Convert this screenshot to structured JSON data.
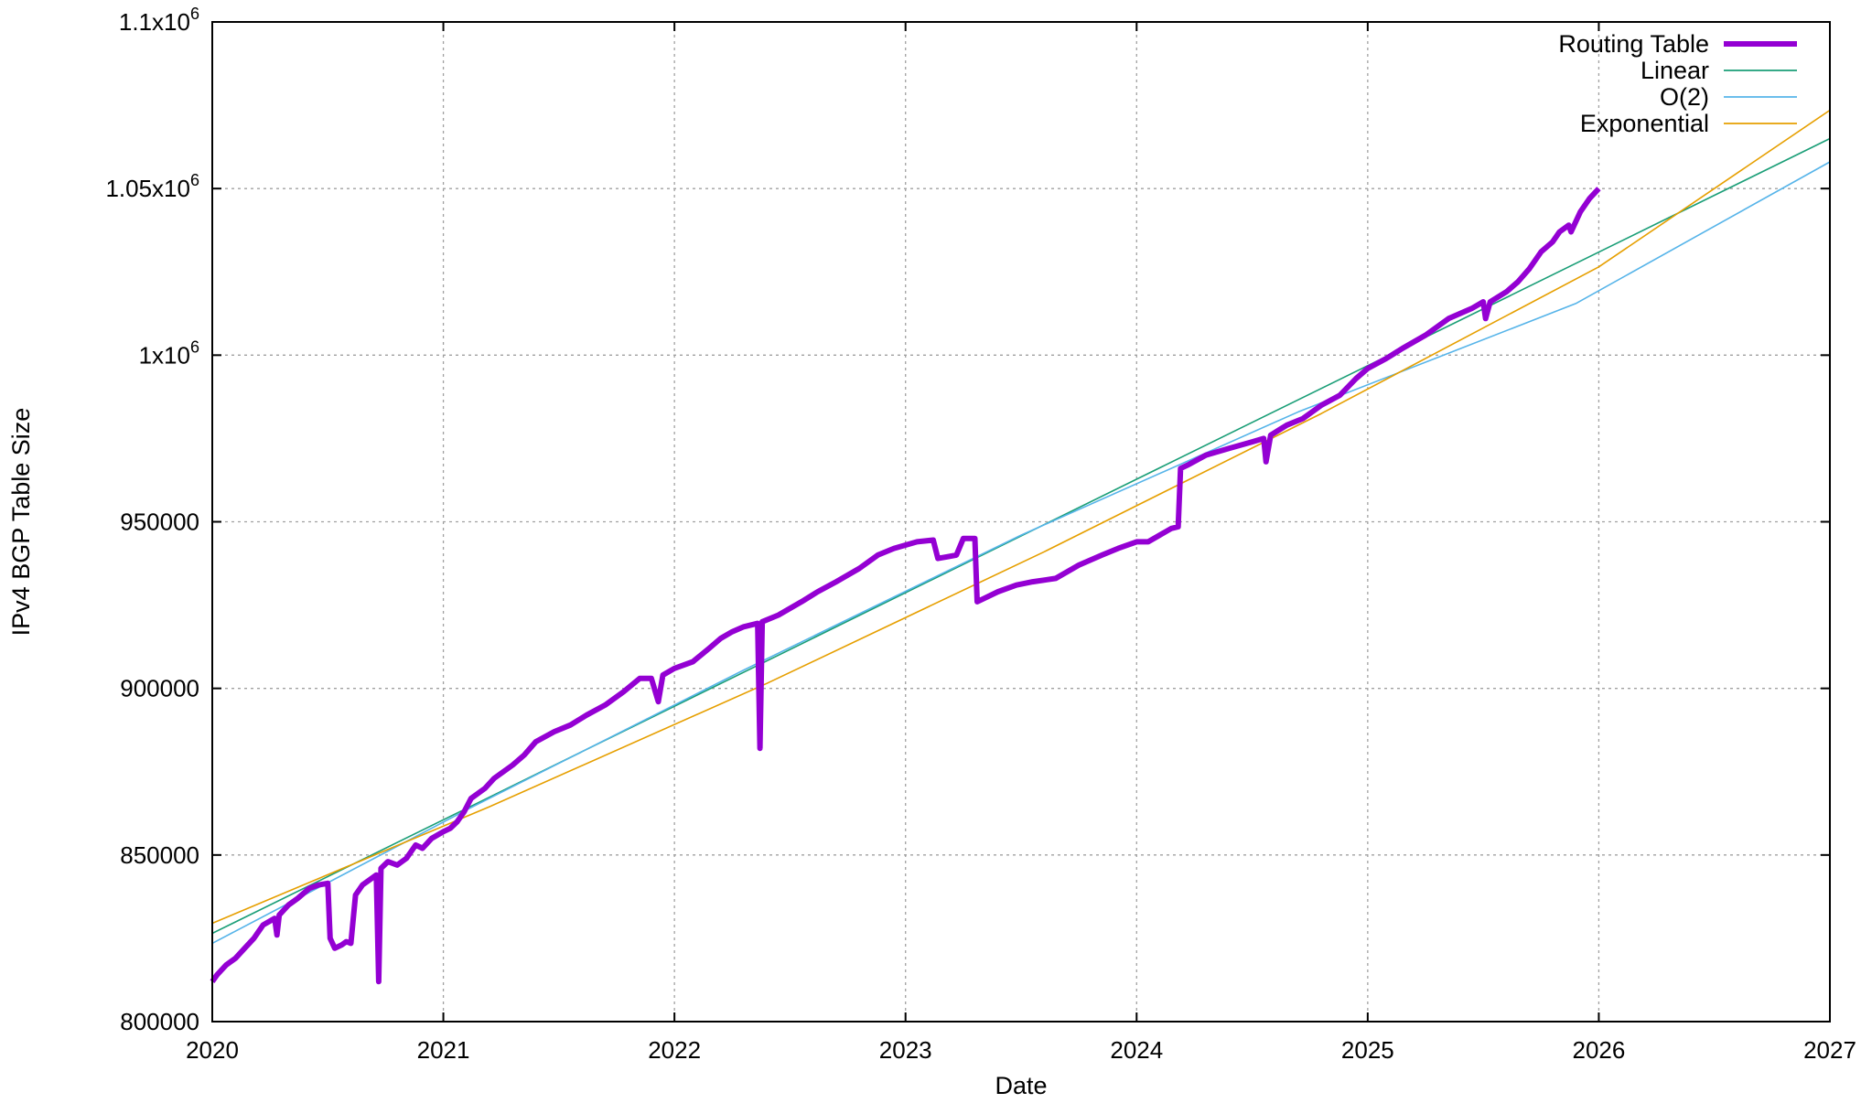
{
  "chart_data": {
    "type": "line",
    "title": "",
    "xlabel": "Date",
    "ylabel": "IPv4 BGP Table Size",
    "xlim": [
      2020,
      2027
    ],
    "ylim": [
      800000,
      1100000
    ],
    "grid": true,
    "legend_position": "top-right",
    "x_ticks": [
      {
        "value": 2020,
        "label": "2020"
      },
      {
        "value": 2021,
        "label": "2021"
      },
      {
        "value": 2022,
        "label": "2022"
      },
      {
        "value": 2023,
        "label": "2023"
      },
      {
        "value": 2024,
        "label": "2024"
      },
      {
        "value": 2025,
        "label": "2025"
      },
      {
        "value": 2026,
        "label": "2026"
      },
      {
        "value": 2027,
        "label": "2027"
      }
    ],
    "y_ticks": [
      {
        "value": 800000,
        "label": "800000"
      },
      {
        "value": 850000,
        "label": "850000"
      },
      {
        "value": 900000,
        "label": "900000"
      },
      {
        "value": 950000,
        "label": "950000"
      },
      {
        "value": 1000000,
        "label": "1x10",
        "sup": "6"
      },
      {
        "value": 1050000,
        "label": "1.05x10",
        "sup": "6"
      },
      {
        "value": 1100000,
        "label": "1.1x10",
        "sup": "6"
      }
    ],
    "series": [
      {
        "name": "Routing Table",
        "color": "#9400d3",
        "kind": "data",
        "points": [
          [
            2020.0,
            812000
          ],
          [
            2020.02,
            814000
          ],
          [
            2020.06,
            817000
          ],
          [
            2020.1,
            819000
          ],
          [
            2020.14,
            822000
          ],
          [
            2020.18,
            825000
          ],
          [
            2020.22,
            829000
          ],
          [
            2020.27,
            831000
          ],
          [
            2020.28,
            826000
          ],
          [
            2020.29,
            832000
          ],
          [
            2020.33,
            835000
          ],
          [
            2020.37,
            837000
          ],
          [
            2020.42,
            840000
          ],
          [
            2020.46,
            841000
          ],
          [
            2020.5,
            841500
          ],
          [
            2020.51,
            825000
          ],
          [
            2020.53,
            822000
          ],
          [
            2020.56,
            823000
          ],
          [
            2020.58,
            824000
          ],
          [
            2020.6,
            823500
          ],
          [
            2020.62,
            838000
          ],
          [
            2020.65,
            841000
          ],
          [
            2020.69,
            843000
          ],
          [
            2020.71,
            844000
          ],
          [
            2020.72,
            812000
          ],
          [
            2020.73,
            846000
          ],
          [
            2020.76,
            848000
          ],
          [
            2020.8,
            847000
          ],
          [
            2020.84,
            849000
          ],
          [
            2020.88,
            853000
          ],
          [
            2020.91,
            852000
          ],
          [
            2020.95,
            855000
          ],
          [
            2021.0,
            857000
          ],
          [
            2021.03,
            858000
          ],
          [
            2021.06,
            860000
          ],
          [
            2021.09,
            863000
          ],
          [
            2021.12,
            867000
          ],
          [
            2021.18,
            870000
          ],
          [
            2021.22,
            873000
          ],
          [
            2021.3,
            877000
          ],
          [
            2021.35,
            880000
          ],
          [
            2021.4,
            884000
          ],
          [
            2021.48,
            887000
          ],
          [
            2021.55,
            889000
          ],
          [
            2021.62,
            892000
          ],
          [
            2021.7,
            895000
          ],
          [
            2021.78,
            899000
          ],
          [
            2021.85,
            903000
          ],
          [
            2021.9,
            903000
          ],
          [
            2021.93,
            896000
          ],
          [
            2021.95,
            904000
          ],
          [
            2022.0,
            906000
          ],
          [
            2022.08,
            908000
          ],
          [
            2022.15,
            912000
          ],
          [
            2022.2,
            915000
          ],
          [
            2022.25,
            917000
          ],
          [
            2022.3,
            918500
          ],
          [
            2022.36,
            919500
          ],
          [
            2022.37,
            882000
          ],
          [
            2022.38,
            920000
          ],
          [
            2022.45,
            922000
          ],
          [
            2022.55,
            926000
          ],
          [
            2022.62,
            929000
          ],
          [
            2022.7,
            932000
          ],
          [
            2022.8,
            936000
          ],
          [
            2022.88,
            940000
          ],
          [
            2022.95,
            942000
          ],
          [
            2023.0,
            943000
          ],
          [
            2023.05,
            944000
          ],
          [
            2023.12,
            944500
          ],
          [
            2023.14,
            939000
          ],
          [
            2023.18,
            939500
          ],
          [
            2023.22,
            940000
          ],
          [
            2023.25,
            945000
          ],
          [
            2023.3,
            945000
          ],
          [
            2023.31,
            926000
          ],
          [
            2023.34,
            927000
          ],
          [
            2023.4,
            929000
          ],
          [
            2023.48,
            931000
          ],
          [
            2023.55,
            932000
          ],
          [
            2023.65,
            933000
          ],
          [
            2023.75,
            937000
          ],
          [
            2023.85,
            940000
          ],
          [
            2023.92,
            942000
          ],
          [
            2024.0,
            944000
          ],
          [
            2024.05,
            944000
          ],
          [
            2024.1,
            946000
          ],
          [
            2024.15,
            948000
          ],
          [
            2024.18,
            948500
          ],
          [
            2024.19,
            966000
          ],
          [
            2024.22,
            967000
          ],
          [
            2024.3,
            970000
          ],
          [
            2024.4,
            972000
          ],
          [
            2024.5,
            974000
          ],
          [
            2024.55,
            975000
          ],
          [
            2024.56,
            968000
          ],
          [
            2024.58,
            976000
          ],
          [
            2024.65,
            979000
          ],
          [
            2024.72,
            981000
          ],
          [
            2024.8,
            985000
          ],
          [
            2024.88,
            988000
          ],
          [
            2024.95,
            993000
          ],
          [
            2025.0,
            996000
          ],
          [
            2025.08,
            999000
          ],
          [
            2025.15,
            1002000
          ],
          [
            2025.25,
            1006000
          ],
          [
            2025.35,
            1011000
          ],
          [
            2025.45,
            1014000
          ],
          [
            2025.5,
            1016000
          ],
          [
            2025.51,
            1011000
          ],
          [
            2025.53,
            1016000
          ],
          [
            2025.6,
            1019000
          ],
          [
            2025.65,
            1022000
          ],
          [
            2025.7,
            1026000
          ],
          [
            2025.75,
            1031000
          ],
          [
            2025.8,
            1034000
          ],
          [
            2025.83,
            1037000
          ],
          [
            2025.87,
            1039000
          ],
          [
            2025.88,
            1037000
          ],
          [
            2025.92,
            1043000
          ],
          [
            2025.96,
            1047000
          ],
          [
            2026.0,
            1050000
          ]
        ]
      },
      {
        "name": "Linear",
        "color": "#1a9e77",
        "kind": "fit",
        "points": [
          [
            2020,
            826500
          ],
          [
            2027,
            1065000
          ]
        ]
      },
      {
        "name": "O(2)",
        "color": "#56b4e9",
        "kind": "fit",
        "points": [
          [
            2020,
            823500
          ],
          [
            2021.1,
            863500
          ],
          [
            2022.3,
            905500
          ],
          [
            2023.5,
            946000
          ],
          [
            2024.7,
            983000
          ],
          [
            2025.9,
            1015500
          ],
          [
            2027,
            1058000
          ]
        ]
      },
      {
        "name": "Exponential",
        "color": "#e69f00",
        "kind": "fit",
        "points": [
          [
            2020,
            829500
          ],
          [
            2021.2,
            864500
          ],
          [
            2022.4,
            901500
          ],
          [
            2023.6,
            941000
          ],
          [
            2024.8,
            982500
          ],
          [
            2026,
            1026500
          ],
          [
            2027,
            1073500
          ]
        ]
      }
    ]
  }
}
